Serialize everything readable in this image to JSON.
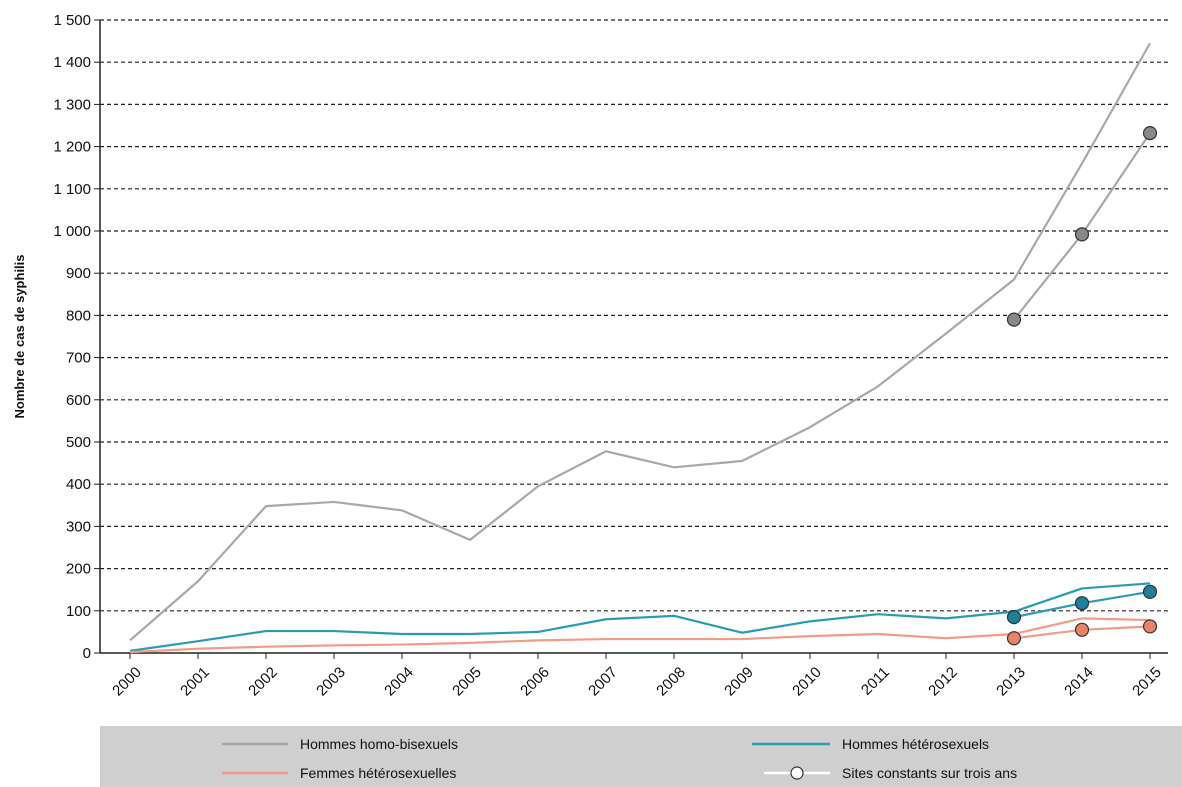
{
  "chart_data": {
    "type": "line",
    "ylabel": "Nombre de cas de syphilis",
    "xlabel": "",
    "ylim": [
      0,
      1500
    ],
    "yticks": [
      0,
      100,
      200,
      300,
      400,
      500,
      600,
      700,
      800,
      900,
      1000,
      1100,
      1200,
      1300,
      1400,
      1500
    ],
    "ytick_labels": [
      "0",
      "100",
      "200",
      "300",
      "400",
      "500",
      "600",
      "700",
      "800",
      "900",
      "1 000",
      "1 100",
      "1 200",
      "1 300",
      "1 400",
      "1 500"
    ],
    "categories": [
      "2000",
      "2001",
      "2002",
      "2003",
      "2004",
      "2005",
      "2006",
      "2007",
      "2008",
      "2009",
      "2010",
      "2011",
      "2012",
      "2013",
      "2014",
      "2015"
    ],
    "grid": "horizontal dashed",
    "legend_position": "bottom",
    "series": [
      {
        "name": "Hommes homo-bisexuels",
        "color": "#a8a8a8",
        "values": [
          30,
          170,
          348,
          358,
          338,
          268,
          395,
          478,
          440,
          455,
          535,
          632,
          757,
          885,
          1160,
          1445
        ]
      },
      {
        "name": "Hommes hétérosexuels",
        "color": "#2a9bb4",
        "values": [
          5,
          28,
          52,
          52,
          45,
          45,
          50,
          80,
          88,
          48,
          75,
          92,
          82,
          98,
          153,
          165
        ]
      },
      {
        "name": "Femmes hétérosexuelles",
        "color": "#f19c86",
        "values": [
          2,
          10,
          15,
          18,
          20,
          24,
          30,
          33,
          33,
          33,
          40,
          45,
          35,
          45,
          82,
          78
        ]
      }
    ],
    "constant_sites": {
      "name": "Sites constants sur trois ans",
      "categories": [
        "2013",
        "2014",
        "2015"
      ],
      "series": [
        {
          "color": "#a8a8a8",
          "marker": "#888888",
          "values": [
            790,
            992,
            1232
          ]
        },
        {
          "color": "#2a9bb4",
          "marker": "#1e7f9a",
          "values": [
            85,
            118,
            145
          ]
        },
        {
          "color": "#f19c86",
          "marker": "#e8836a",
          "values": [
            35,
            55,
            63
          ]
        }
      ]
    }
  }
}
